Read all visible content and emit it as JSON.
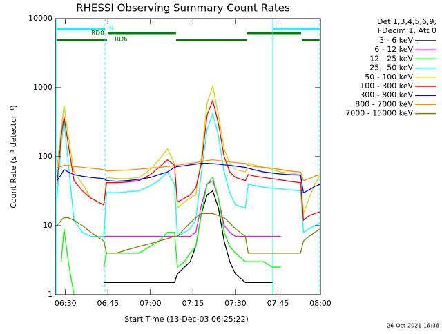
{
  "chart_data": {
    "type": "line",
    "title": "RHESSI Observing Summary Count Rates",
    "xlabel": "Start Time (13-Dec-03 06:25:22)",
    "ylabel": "Count Rate (s⁻¹ detector⁻¹)",
    "legend_title": [
      "Det 1,3,4,5,6,9,",
      "FDecim 1, Att 0"
    ],
    "annotations": [
      "N",
      "RD0",
      "RD6"
    ],
    "footer": "26-Oct-2021 16:36",
    "log_y": true,
    "legend": "right",
    "ylim": [
      1,
      10000
    ],
    "yticks": [
      1,
      10,
      100,
      1000,
      10000
    ],
    "xlim": [
      26.4,
      120
    ],
    "xticks": [
      {
        "value": 30,
        "label": "06:30"
      },
      {
        "value": 45,
        "label": "06:45"
      },
      {
        "value": 60,
        "label": "07:00"
      },
      {
        "value": 75,
        "label": "07:15"
      },
      {
        "value": 90,
        "label": "07:30"
      },
      {
        "value": 105,
        "label": "07:45"
      },
      {
        "value": 120,
        "label": "08:00"
      }
    ],
    "x": [
      27,
      28.5,
      29.5,
      31,
      33,
      36,
      39,
      43.5,
      44.5,
      48,
      52,
      56,
      60,
      63,
      66,
      68.5,
      69.5,
      72,
      74,
      76,
      78,
      80,
      82,
      84,
      86,
      88,
      90,
      93.5,
      94.5,
      97,
      100,
      103,
      106,
      109,
      113,
      114,
      116,
      118,
      120
    ],
    "series": [
      {
        "name": "3 - 6 keV",
        "color": "#000000",
        "values": [
          null,
          null,
          null,
          null,
          null,
          null,
          null,
          1.5,
          1.5,
          1.5,
          1.5,
          1.5,
          1.5,
          1.5,
          1.5,
          1.5,
          2,
          2.5,
          3,
          5,
          15,
          28,
          32,
          18,
          6,
          3,
          2,
          1.5,
          1.5,
          1.5,
          1.5,
          1.5,
          null,
          null,
          null,
          null,
          null,
          null,
          null
        ]
      },
      {
        "name": "6 - 12 keV",
        "color": "#ff00ff",
        "values": [
          null,
          null,
          null,
          null,
          null,
          null,
          null,
          7,
          7,
          7,
          7,
          7,
          7,
          7,
          7,
          7,
          7,
          7,
          7,
          8,
          20,
          40,
          45,
          25,
          10,
          8,
          7,
          7,
          7,
          7,
          7,
          7,
          7,
          null,
          null,
          null,
          null,
          null,
          null
        ]
      },
      {
        "name": "12 - 25 keV",
        "color": "#00ff00",
        "values": [
          null,
          3,
          9,
          3,
          1,
          null,
          null,
          2.5,
          4,
          4,
          4,
          4,
          5,
          6,
          8,
          8,
          2.5,
          3,
          4,
          5,
          15,
          40,
          50,
          25,
          8,
          5,
          4,
          3,
          3,
          3,
          3,
          2.5,
          2.5,
          null,
          null,
          null,
          null,
          null,
          null
        ]
      },
      {
        "name": "25 - 50 keV",
        "color": "#00ffff",
        "values": [
          25,
          150,
          330,
          80,
          12,
          8,
          7,
          7,
          30,
          30,
          31,
          32,
          38,
          45,
          60,
          40,
          7,
          8,
          9,
          12,
          60,
          250,
          420,
          200,
          60,
          30,
          20,
          18,
          40,
          38,
          36,
          35,
          34,
          33,
          32,
          8,
          9,
          10,
          11
        ]
      },
      {
        "name": "50 - 100 keV",
        "color": "#d4d400",
        "values": [
          70,
          250,
          550,
          200,
          60,
          40,
          25,
          20,
          50,
          48,
          48,
          50,
          65,
          90,
          130,
          80,
          18,
          22,
          25,
          28,
          100,
          600,
          1050,
          400,
          130,
          80,
          65,
          60,
          80,
          75,
          70,
          65,
          60,
          58,
          55,
          15,
          25,
          40,
          55
        ]
      },
      {
        "name": "100 - 300 keV",
        "color": "#ff0000",
        "values": [
          40,
          200,
          380,
          150,
          45,
          32,
          25,
          20,
          42,
          42,
          43,
          45,
          55,
          70,
          90,
          75,
          22,
          25,
          28,
          35,
          80,
          400,
          650,
          300,
          100,
          60,
          50,
          45,
          55,
          52,
          50,
          48,
          46,
          44,
          42,
          12,
          14,
          15,
          16
        ]
      },
      {
        "name": "300 - 800 keV",
        "color": "#0000ff",
        "values": [
          45,
          55,
          65,
          60,
          55,
          52,
          50,
          48,
          45,
          44,
          45,
          47,
          50,
          55,
          60,
          70,
          72,
          74,
          76,
          78,
          80,
          80,
          79,
          78,
          76,
          75,
          73,
          70,
          68,
          64,
          60,
          58,
          56,
          55,
          54,
          30,
          33,
          37,
          40
        ]
      },
      {
        "name": "800 - 7000 keV",
        "color": "#ff8c00",
        "values": [
          70,
          72,
          75,
          75,
          72,
          70,
          68,
          65,
          62,
          63,
          64,
          66,
          68,
          70,
          72,
          74,
          75,
          78,
          80,
          82,
          85,
          88,
          90,
          88,
          86,
          84,
          82,
          80,
          75,
          72,
          70,
          68,
          65,
          62,
          60,
          45,
          48,
          52,
          55
        ]
      },
      {
        "name": "7000 - 15000 keV",
        "color": "#808000",
        "values": [
          10,
          12,
          13,
          13,
          12,
          10,
          8,
          6,
          4,
          4,
          4.5,
          5,
          5.5,
          6,
          6.5,
          7,
          7,
          9,
          11,
          13,
          15,
          15,
          15,
          14,
          13,
          11,
          9,
          7,
          4,
          4,
          4,
          4,
          4,
          4,
          4,
          6,
          7,
          8,
          9
        ]
      }
    ]
  }
}
